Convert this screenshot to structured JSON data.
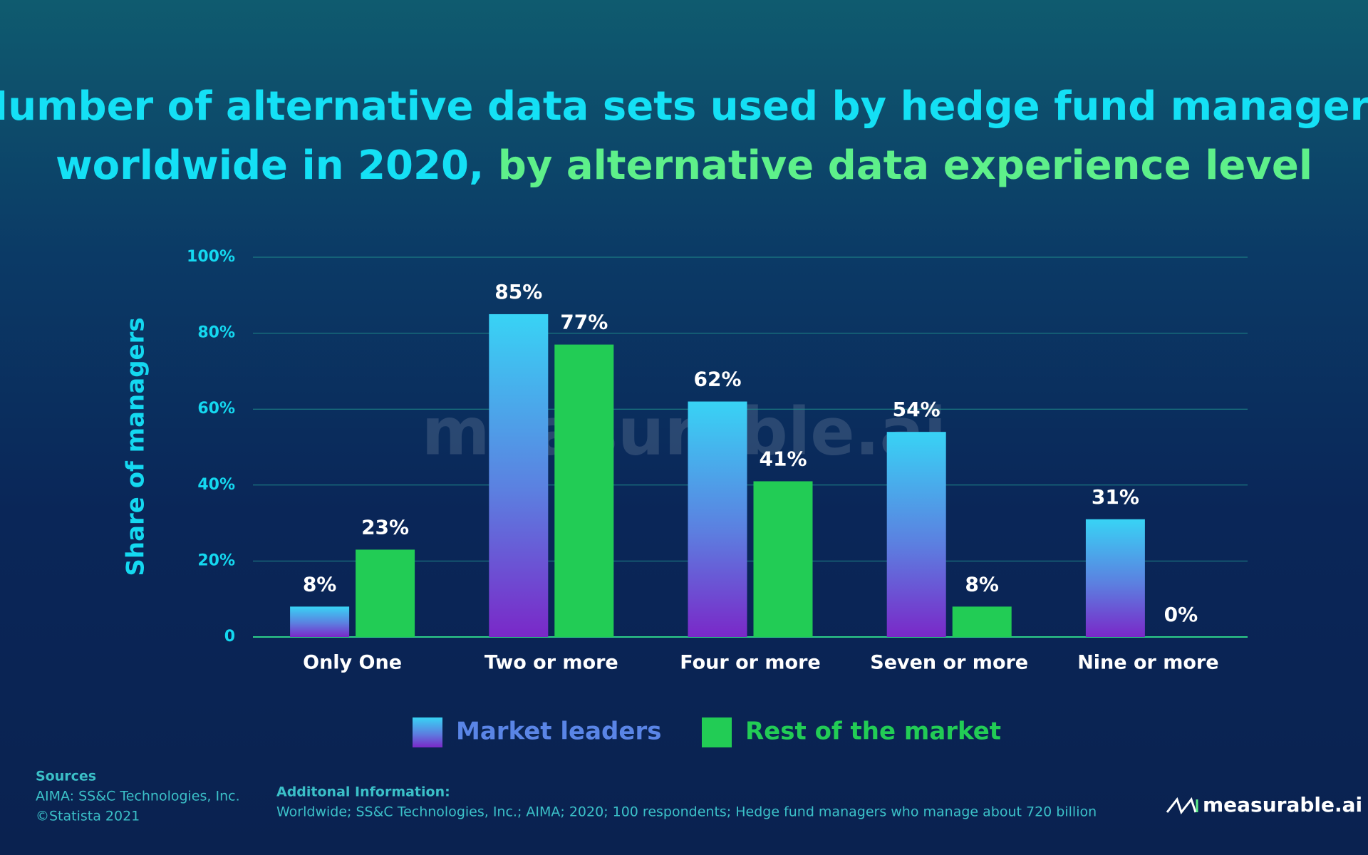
{
  "chart_data": {
    "type": "bar",
    "title": "Number of alternative data sets used by hedge fund managers",
    "title_line2": "worldwide in 2020,",
    "subtitle": "by alternative data experience level",
    "ylabel": "Share of managers",
    "categories": [
      "Only One",
      "Two or more",
      "Four or more",
      "Seven or more",
      "Nine or more"
    ],
    "series": [
      {
        "name": "Market leaders",
        "color": "#38d3f5",
        "values": [
          8,
          85,
          62,
          54,
          31
        ],
        "value_labels": [
          "8%",
          "85%",
          "62%",
          "54%",
          "31%"
        ]
      },
      {
        "name": "Rest of the market",
        "color": "#22cc55",
        "values": [
          23,
          77,
          41,
          8,
          0
        ],
        "value_labels": [
          "23%",
          "77%",
          "41%",
          "8%",
          "0%"
        ]
      }
    ],
    "ylim": [
      0,
      100
    ],
    "yticks": [
      0,
      {
        "value": 20,
        "label": "20%"
      },
      {
        "value": 40,
        "label": "40%"
      },
      {
        "value": 60,
        "label": "60%"
      },
      {
        "value": 80,
        "label": "80%"
      },
      {
        "value": 100,
        "label": "100%"
      }
    ],
    "grid": true,
    "legend": "bottom",
    "watermark": "measurable.ai"
  },
  "footer": {
    "sources_title": "Sources",
    "sources": [
      "AIMA: SS&C Technologies, Inc.",
      "©Statista 2021"
    ],
    "additional_title": "Additonal Information:",
    "additional": "Worldwide; SS&C Technologies, Inc.; AIMA; 2020; 100 respondents; Hedge fund managers who manage about 720 billion",
    "logo": "measurable.ai"
  }
}
